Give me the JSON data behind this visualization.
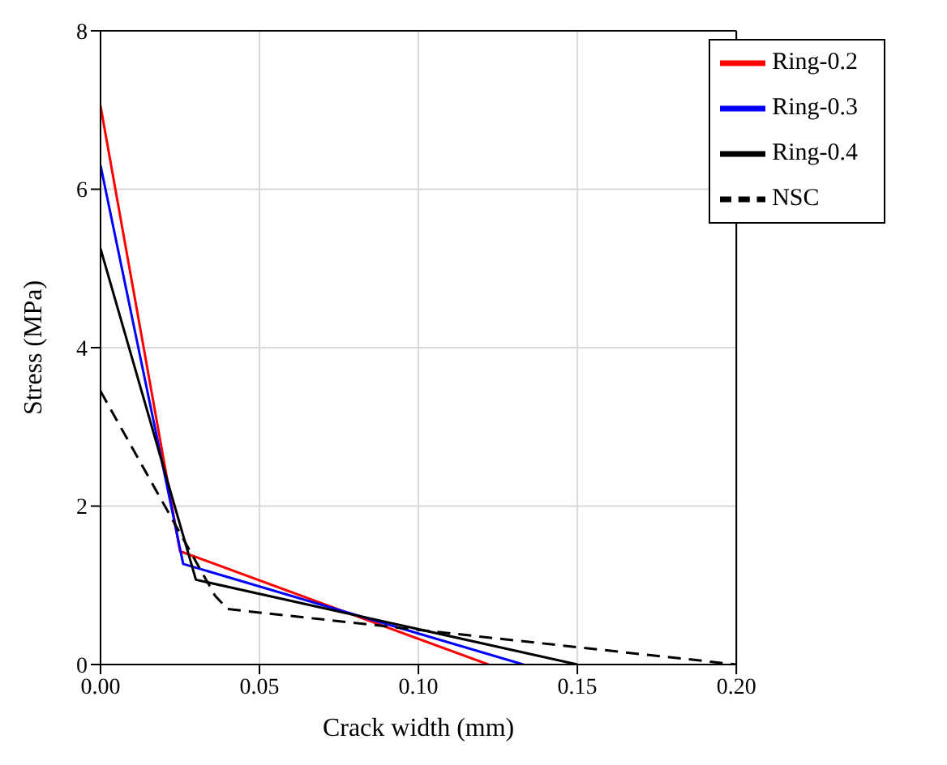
{
  "chart_data": {
    "type": "line",
    "xlabel": "Crack width (mm)",
    "ylabel": "Stress (MPa)",
    "xlim": [
      0,
      0.2
    ],
    "xticks": [
      {
        "value": 0,
        "label": "0.00"
      },
      {
        "value": 0.05,
        "label": "0.05"
      },
      {
        "value": 0.1,
        "label": "0.10"
      },
      {
        "value": 0.15,
        "label": "0.15"
      },
      {
        "value": 0.2,
        "label": "0.20"
      }
    ],
    "ylim": [
      0,
      8
    ],
    "yticks": [
      0,
      2,
      4,
      6,
      8
    ],
    "grid": true,
    "legend": "top right",
    "marker": "none",
    "series": [
      {
        "name": "Ring-0.2",
        "color": "#ff0000",
        "x": [
          0,
          0.025,
          0.122
        ],
        "values": [
          7.05,
          1.43,
          0
        ]
      },
      {
        "name": "Ring-0.3",
        "color": "#0000ff",
        "x": [
          0,
          0.026,
          0.133
        ],
        "values": [
          6.3,
          1.27,
          0
        ]
      },
      {
        "name": "Ring-0.4",
        "color": "#000000",
        "x": [
          0,
          0.03,
          0.15
        ],
        "values": [
          5.25,
          1.07,
          0
        ]
      },
      {
        "name": "NSC",
        "color": "#000000",
        "line_style": "dashed",
        "x": [
          0,
          0.036,
          0.04,
          0.2
        ],
        "values": [
          3.45,
          0.87,
          0.7,
          0
        ]
      }
    ]
  }
}
